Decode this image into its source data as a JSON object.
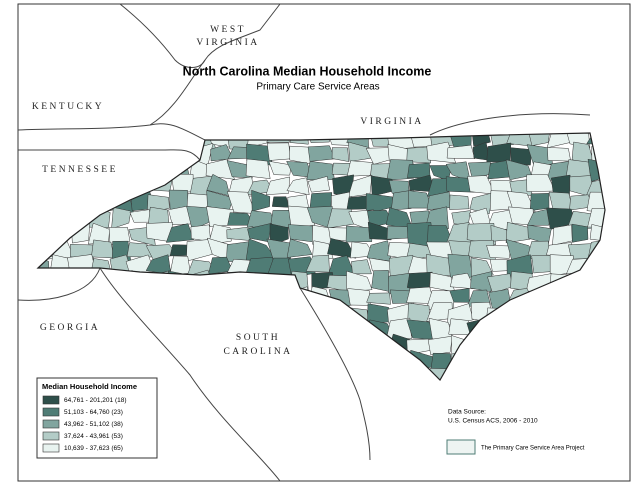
{
  "map": {
    "title": "North Carolina Median Household Income",
    "subtitle": "Primary Care Service Areas",
    "neighbors": {
      "west_virginia": [
        "WEST",
        "VIRGINIA"
      ],
      "kentucky": "KENTUCKY",
      "virginia": "VIRGINIA",
      "tennessee": "TENNESSEE",
      "georgia": "GEORGIA",
      "south_carolina": [
        "SOUTH",
        "CAROLINA"
      ]
    },
    "legend": {
      "title": "Median Household Income",
      "items": [
        {
          "label": "64,761 - 201,201 (18)",
          "color": "#2e4f4a"
        },
        {
          "label": "51,103 - 64,760 (23)",
          "color": "#4f7c75"
        },
        {
          "label": "43,962 - 51,102 (38)",
          "color": "#81a59f"
        },
        {
          "label": "37,624 - 43,961 (53)",
          "color": "#b3ccc7"
        },
        {
          "label": "10,639 - 37,623 (65)",
          "color": "#e8f3f0"
        }
      ]
    },
    "source": [
      "Data Source:",
      "U.S. Census ACS, 2006 - 2010"
    ],
    "credit": "The Primary Care Service Area Project"
  }
}
